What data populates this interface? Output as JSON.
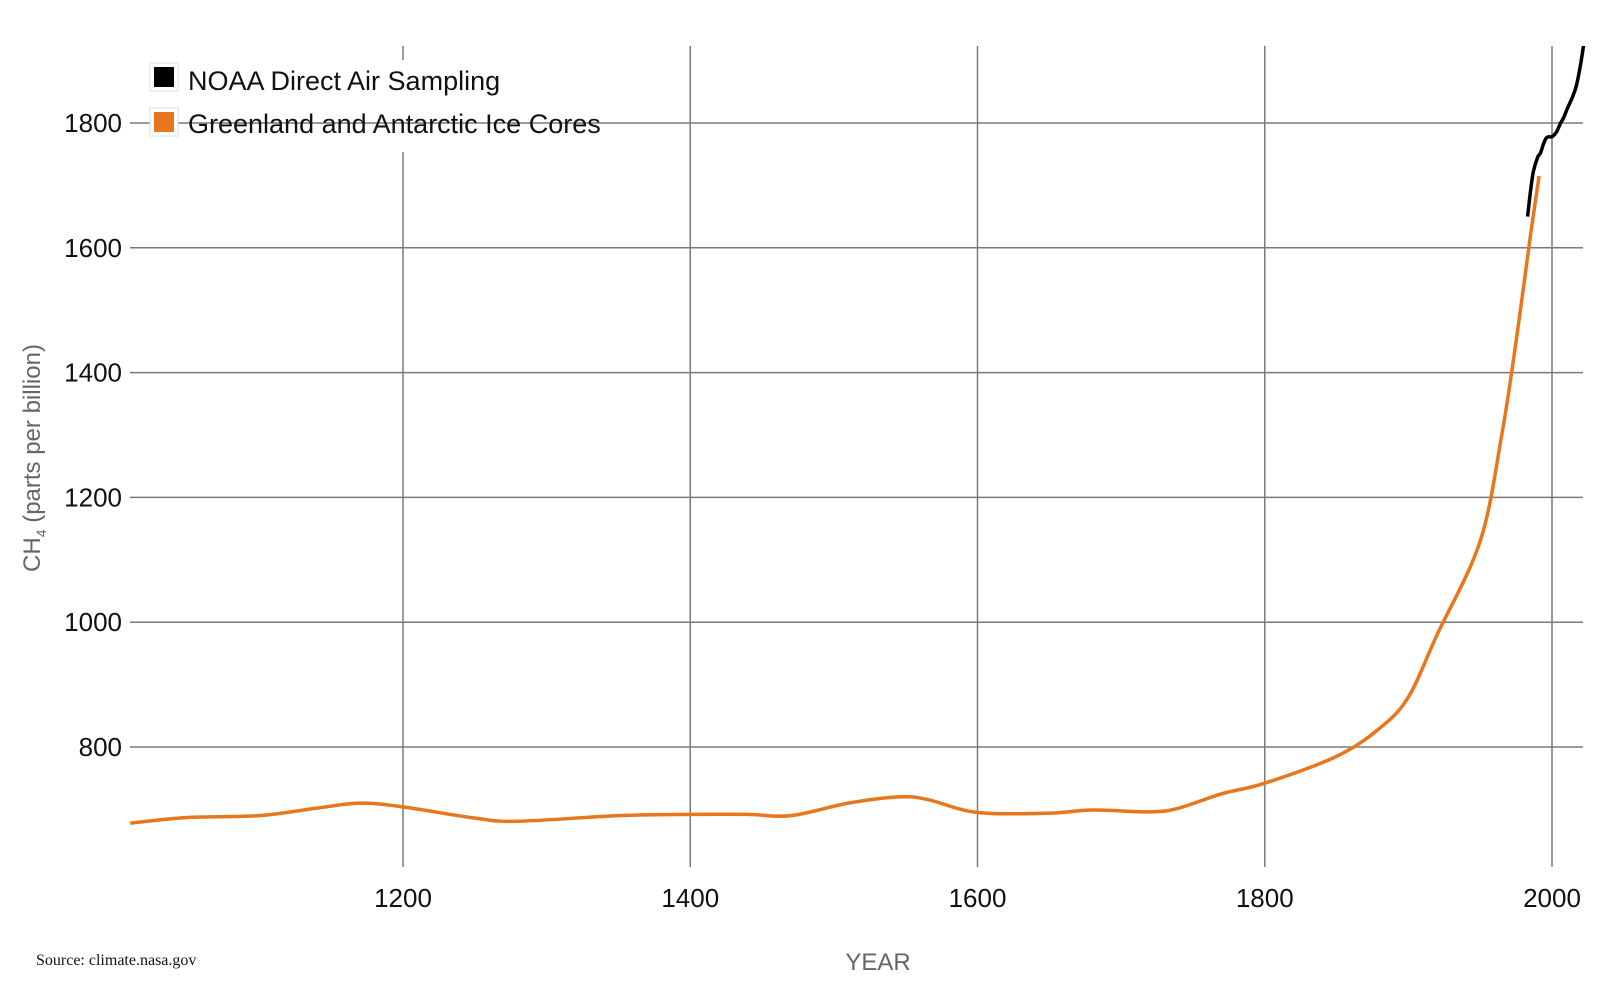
{
  "chart_data": {
    "type": "line",
    "title": "",
    "xlabel": "YEAR",
    "ylabel_main": "CH",
    "ylabel_sub": "4",
    "ylabel_rest": " (parts per billion)",
    "xlim": [
      1010,
      2022
    ],
    "ylim": [
      608,
      1925
    ],
    "xticks": [
      1200,
      1400,
      1600,
      1800,
      2000
    ],
    "yticks": [
      800,
      1000,
      1200,
      1400,
      1600,
      1800
    ],
    "grid": true,
    "legend_placement": "top-left",
    "series": [
      {
        "name": "NOAA Direct Air Sampling",
        "color": "#000000",
        "x": [
          1983,
          1985,
          1987,
          1990,
          1992,
          1994,
          1996,
          1998,
          2000,
          2003,
          2006,
          2008,
          2011,
          2014,
          2017,
          2020,
          2022
        ],
        "y": [
          1650,
          1690,
          1722,
          1745,
          1752,
          1766,
          1776,
          1778,
          1778,
          1785,
          1800,
          1808,
          1825,
          1840,
          1860,
          1895,
          1925
        ]
      },
      {
        "name": "Greenland and Antarctic Ice Cores",
        "color": "#e8761c",
        "x": [
          1010,
          1050,
          1100,
          1140,
          1170,
          1200,
          1250,
          1280,
          1350,
          1400,
          1440,
          1470,
          1510,
          1545,
          1565,
          1600,
          1650,
          1680,
          1720,
          1740,
          1770,
          1800,
          1850,
          1880,
          1900,
          1920,
          1950,
          1965,
          1975,
          1985,
          1991
        ],
        "y": [
          678,
          687,
          690,
          702,
          710,
          704,
          686,
          681,
          690,
          692,
          692,
          690,
          710,
          720,
          716,
          695,
          694,
          699,
          696,
          702,
          725,
          742,
          785,
          830,
          880,
          980,
          1130,
          1300,
          1450,
          1620,
          1715
        ]
      }
    ]
  },
  "source": "Source: climate.nasa.gov"
}
